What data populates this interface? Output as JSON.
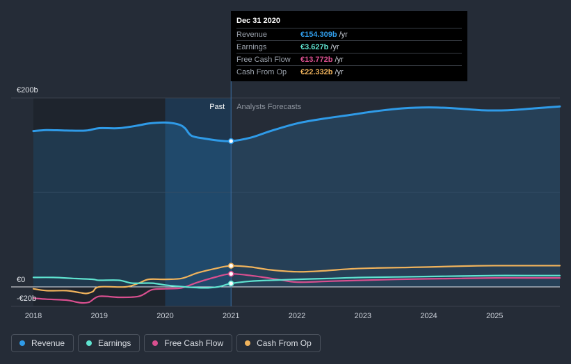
{
  "tooltip": {
    "date": "Dec 31 2020",
    "rows": [
      {
        "label": "Revenue",
        "value": "€154.309b",
        "unit": "/yr",
        "color": "#2f9be8"
      },
      {
        "label": "Earnings",
        "value": "€3.627b",
        "unit": "/yr",
        "color": "#5fe3d0"
      },
      {
        "label": "Free Cash Flow",
        "value": "€13.772b",
        "unit": "/yr",
        "color": "#d94f8f"
      },
      {
        "label": "Cash From Op",
        "value": "€22.332b",
        "unit": "/yr",
        "color": "#f0b35c"
      }
    ]
  },
  "legend": [
    {
      "label": "Revenue",
      "color": "#2f9be8"
    },
    {
      "label": "Earnings",
      "color": "#5fe3d0"
    },
    {
      "label": "Free Cash Flow",
      "color": "#d94f8f"
    },
    {
      "label": "Cash From Op",
      "color": "#f0b35c"
    }
  ],
  "chart_data": {
    "type": "line",
    "title": "",
    "xlabel": "",
    "ylabel": "",
    "x_ticks": [
      "2018",
      "2019",
      "2020",
      "2021",
      "2022",
      "2023",
      "2024",
      "2025"
    ],
    "y_ticks": [
      "€200b",
      "€0",
      "-€20b"
    ],
    "xlim": [
      2018.0,
      2025.99
    ],
    "ylim": [
      -20,
      200
    ],
    "past_label": "Past",
    "forecast_label": "Analysts Forecasts",
    "forecast_start": 2021.0,
    "highlight_start": 2020.0,
    "marker_x": 2021.0,
    "series": [
      {
        "name": "Revenue",
        "color": "#2f9be8",
        "x": [
          2018.0,
          2018.2,
          2018.5,
          2018.8,
          2019.0,
          2019.3,
          2019.6,
          2019.75,
          2020.0,
          2020.2,
          2020.3,
          2020.4,
          2020.6,
          2020.8,
          2021.0,
          2021.3,
          2021.6,
          2022.0,
          2022.4,
          2022.8,
          2023.2,
          2023.6,
          2024.0,
          2024.4,
          2024.8,
          2025.2,
          2025.6,
          2025.99
        ],
        "y": [
          165,
          166,
          165.5,
          165.5,
          168,
          168,
          171,
          173,
          174,
          172,
          168,
          160,
          157,
          155,
          154.3,
          158,
          165,
          173,
          178,
          182,
          186,
          189,
          190,
          189,
          187,
          187,
          189,
          191
        ]
      },
      {
        "name": "Earnings",
        "color": "#5fe3d0",
        "x": [
          2018.0,
          2018.3,
          2018.6,
          2018.9,
          2019.0,
          2019.3,
          2019.5,
          2019.8,
          2020.0,
          2020.3,
          2020.6,
          2020.8,
          2021.0,
          2021.3,
          2021.6,
          2022.0,
          2022.5,
          2023.0,
          2023.5,
          2024.0,
          2024.5,
          2025.0,
          2025.5,
          2025.99
        ],
        "y": [
          10,
          10,
          9,
          8,
          7,
          7,
          4,
          4,
          2,
          0,
          -1,
          0,
          3.6,
          6,
          7,
          8,
          9,
          10,
          10.5,
          11,
          11.5,
          12,
          12,
          12
        ]
      },
      {
        "name": "Free Cash Flow",
        "color": "#d94f8f",
        "x": [
          2018.0,
          2018.2,
          2018.5,
          2018.65,
          2018.75,
          2018.85,
          2019.0,
          2019.3,
          2019.6,
          2019.8,
          2020.0,
          2020.25,
          2020.5,
          2020.8,
          2021.0,
          2021.3,
          2021.7,
          2022.0,
          2022.5,
          2023.0,
          2023.5,
          2024.0,
          2024.5,
          2025.0,
          2025.5,
          2025.99
        ],
        "y": [
          -12,
          -13,
          -14,
          -16,
          -17,
          -16,
          -10,
          -11,
          -10,
          -3,
          -2,
          -1,
          5,
          11,
          13.8,
          12,
          8,
          5,
          6,
          7,
          8,
          8.5,
          9,
          9.5,
          9.5,
          9.5
        ]
      },
      {
        "name": "Cash From Op",
        "color": "#f0b35c",
        "x": [
          2018.0,
          2018.2,
          2018.5,
          2018.7,
          2018.8,
          2018.9,
          2019.0,
          2019.4,
          2019.6,
          2019.75,
          2020.0,
          2020.25,
          2020.5,
          2020.8,
          2021.0,
          2021.3,
          2021.6,
          2022.0,
          2022.4,
          2022.8,
          2023.2,
          2023.6,
          2024.0,
          2024.5,
          2025.0,
          2025.5,
          2025.99
        ],
        "y": [
          -2,
          -4,
          -4,
          -6,
          -7,
          -5,
          0,
          0,
          4,
          8,
          8,
          9,
          15,
          20,
          22.3,
          21,
          18,
          16,
          17,
          19,
          20,
          20.5,
          21,
          22,
          22.5,
          22.5,
          22.5
        ]
      }
    ]
  }
}
